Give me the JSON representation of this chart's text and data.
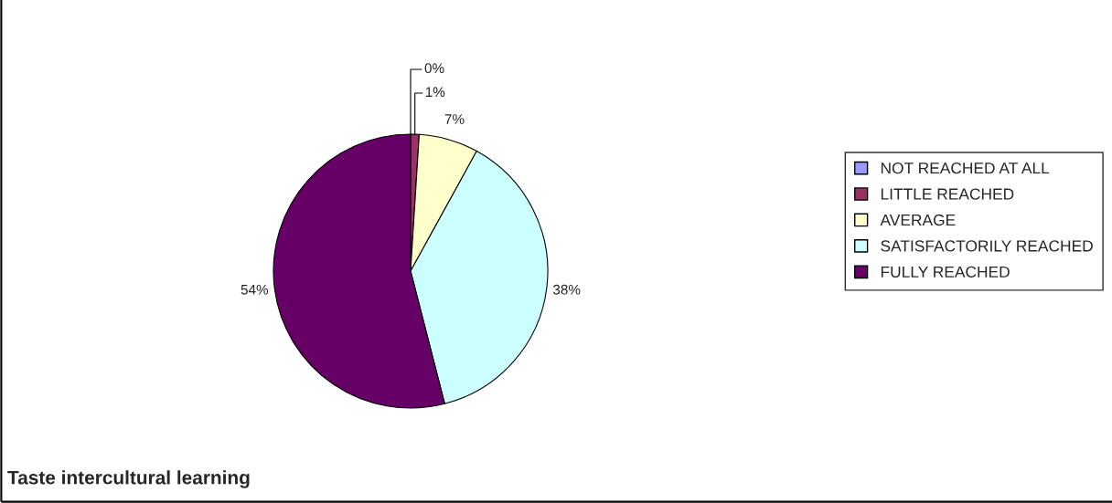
{
  "chart_data": {
    "type": "pie",
    "title": "Taste intercultural learning",
    "categories": [
      "NOT REACHED AT ALL",
      "LITTLE REACHED",
      "AVERAGE",
      "SATISFACTORILY REACHED",
      "FULLY REACHED"
    ],
    "values": [
      0,
      1,
      7,
      38,
      54
    ],
    "colors": [
      "#9999ff",
      "#993366",
      "#ffffcc",
      "#ccffff",
      "#660066"
    ],
    "value_labels": [
      "0%",
      "1%",
      "7%",
      "38%",
      "54%"
    ],
    "legend": "right"
  }
}
